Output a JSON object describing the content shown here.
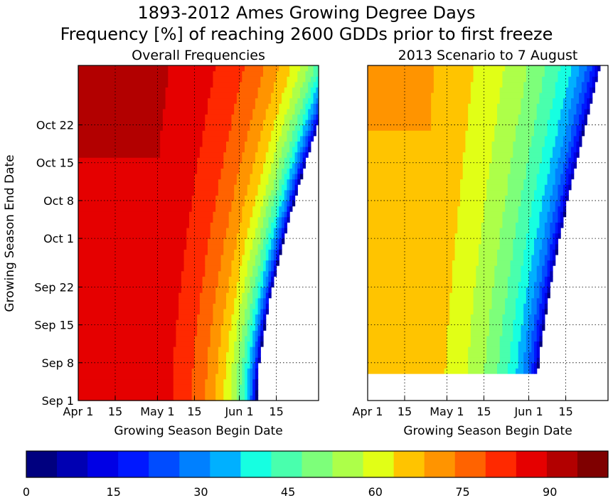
{
  "title_line1": "1893-2012 Ames Growing Degree Days",
  "title_line2": "Frequency [%] of reaching 2600 GDDs prior to first freeze",
  "colors": [
    "#00007f",
    "#0000b2",
    "#0000e5",
    "#0018ff",
    "#004cff",
    "#0080ff",
    "#00b0ff",
    "#16ffe1",
    "#49ffad",
    "#7dff7a",
    "#adff49",
    "#e1ff16",
    "#ffc400",
    "#ff9400",
    "#ff6300",
    "#ff2900",
    "#e50000",
    "#b20000",
    "#7f0000"
  ],
  "chart_data": [
    {
      "type": "heatmap",
      "title": "Overall Frequencies",
      "xlabel": "Growing Season Begin Date",
      "ylabel": "Growing Season End Date",
      "xticks": [
        "Apr 1",
        "15",
        "May 1",
        "15",
        "Jun 1",
        "15"
      ],
      "yticks": [
        "Sep 1",
        "Sep 8",
        "Sep 15",
        "Sep 22",
        "Oct 1",
        "Oct 8",
        "Oct 15",
        "Oct 22"
      ],
      "grid": true,
      "x_range": [
        "Apr 1",
        "Jun 30"
      ],
      "y_range": [
        "Sep 1",
        "Nov 1"
      ],
      "model": {
        "k": 3.1,
        "b": 0.66,
        "x_offset": 67,
        "a": 0.065,
        "p": 1.5,
        "flat_day": 30,
        "min_value": 3
      }
    },
    {
      "type": "heatmap",
      "title": "2013 Scenario to 7 August",
      "xlabel": "Growing Season Begin Date",
      "ylabel": "",
      "xticks": [
        "Apr 1",
        "15",
        "May 1",
        "15",
        "Jun 1",
        "15"
      ],
      "yticks": [],
      "grid": true,
      "x_range": [
        "Apr 1",
        "Jun 30"
      ],
      "y_range": [
        "Sep 1",
        "Nov 1"
      ],
      "model": {
        "k": 1.4,
        "b": 0.53,
        "x_offset": 63,
        "a": 0.095,
        "p": 1.35,
        "flat_day": 23,
        "min_value": 3,
        "first_day": 5
      }
    }
  ],
  "colorbar": {
    "ticks": [
      "0",
      "15",
      "30",
      "45",
      "60",
      "75",
      "90"
    ],
    "min": 0,
    "max": 100
  }
}
